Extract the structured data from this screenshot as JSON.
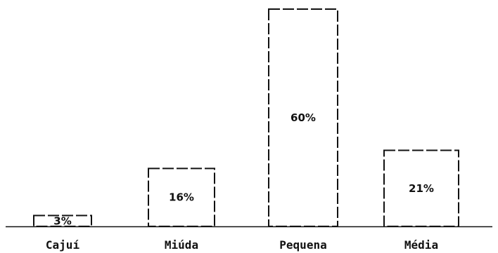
{
  "chart_data": {
    "type": "bar",
    "categories": [
      "Cajuí",
      "Miúda",
      "Pequena",
      "Média"
    ],
    "values": [
      3,
      16,
      60,
      21
    ],
    "value_labels": [
      "3%",
      "16%",
      "60%",
      "21%"
    ],
    "title": "",
    "xlabel": "",
    "ylabel": "",
    "grid": false,
    "legend": "none",
    "colors": {
      "bar_fill": "#ffffff",
      "bar_stroke": "#111111",
      "axis": "#111111",
      "text": "#111111"
    }
  }
}
